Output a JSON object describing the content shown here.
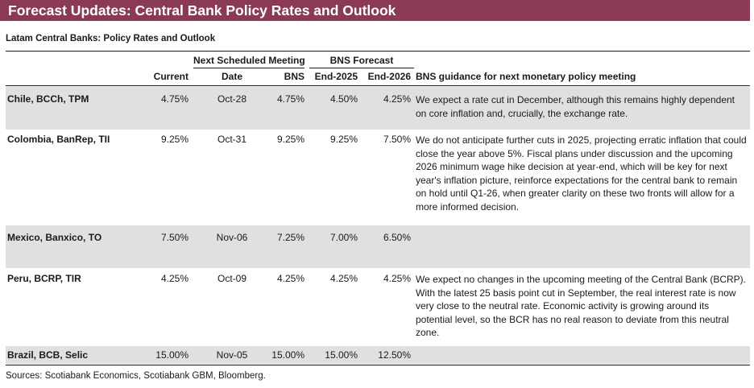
{
  "title": "Forecast Updates: Central Bank Policy Rates and Outlook",
  "subtitle": "Latam Central Banks: Policy Rates and Outlook",
  "header": {
    "group_meeting": "Next Scheduled Meeting",
    "group_forecast": "BNS Forecast",
    "current": "Current",
    "date": "Date",
    "bns": "BNS",
    "end2025": "End-2025",
    "end2026": "End-2026",
    "guidance": "BNS guidance for next monetary policy meeting"
  },
  "rows": [
    {
      "bank": "Chile, BCCh, TPM",
      "current": "4.75%",
      "date": "Oct-28",
      "bns": "4.75%",
      "end2025": "4.50%",
      "end2026": "4.25%",
      "guidance": "We expect a rate cut in December, although this remains highly dependent on core inflation and, crucially, the exchange rate."
    },
    {
      "bank": "Colombia, BanRep, TII",
      "current": "9.25%",
      "date": "Oct-31",
      "bns": "9.25%",
      "end2025": "9.25%",
      "end2026": "7.50%",
      "guidance": "We do not anticipate further cuts in 2025, projecting erratic inflation that could close the year above 5%. Fiscal plans under discussion and the upcoming 2026 minimum wage hike decision at year-end, which will be key for next year's inflation picture, reinforce expectations for the central bank to remain on hold until Q1-26, when greater clarity on these two fronts will allow for a more informed decision."
    },
    {
      "bank": "Mexico, Banxico, TO",
      "current": "7.50%",
      "date": "Nov-06",
      "bns": "7.25%",
      "end2025": "7.00%",
      "end2026": "6.50%",
      "guidance": ""
    },
    {
      "bank": "Peru, BCRP, TIR",
      "current": "4.25%",
      "date": "Oct-09",
      "bns": "4.25%",
      "end2025": "4.25%",
      "end2026": "4.25%",
      "guidance": "We expect no changes in the upcoming meeting of the Central Bank (BCRP). With the latest 25 basis point cut in September, the real interest rate is now very close to the neutral rate. Economic activity is growing around its potential level, so the BCR has no real reason to deviate from this neutral zone."
    },
    {
      "bank": "Brazil, BCB, Selic",
      "current": "15.00%",
      "date": "Nov-05",
      "bns": "15.00%",
      "end2025": "15.00%",
      "end2026": "12.50%",
      "guidance": ""
    }
  ],
  "source": "Sources: Scotiabank Economics, Scotiabank GBM, Bloomberg.",
  "colors": {
    "banner": "#8a3a55",
    "shaded_row": "#e0e0e0"
  }
}
